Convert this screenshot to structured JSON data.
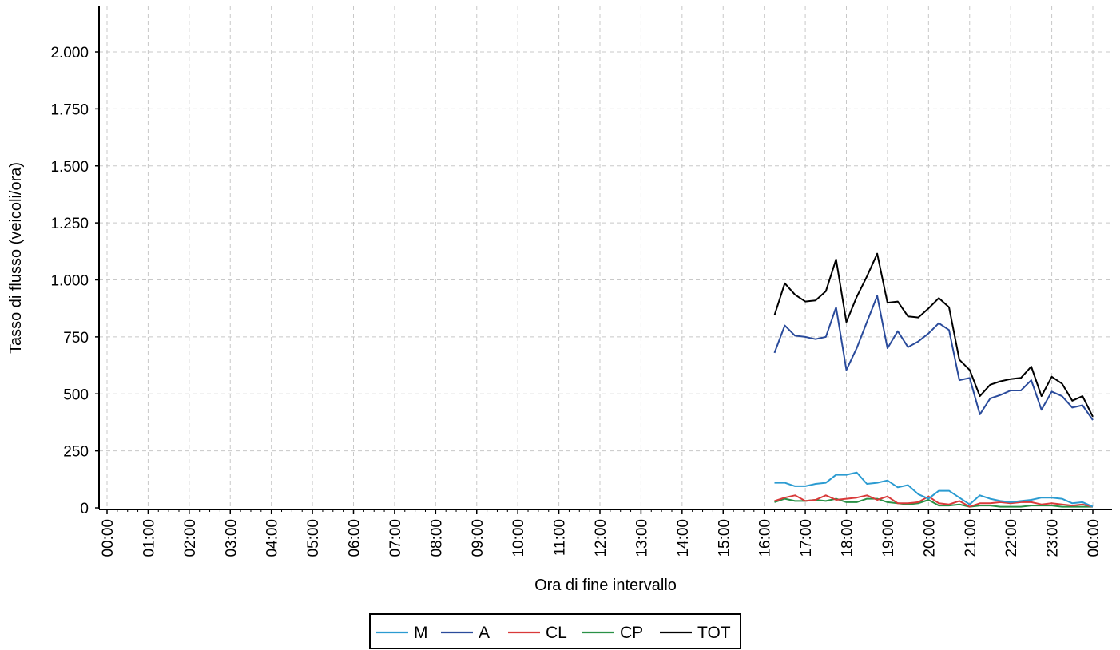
{
  "chart_data": {
    "type": "line",
    "title": "",
    "xlabel": "Ora di fine intervallo",
    "ylabel": "Tasso di flusso (veicoli/ora)",
    "x_tick_labels": [
      "00:00",
      "01:00",
      "02:00",
      "03:00",
      "04:00",
      "05:00",
      "06:00",
      "07:00",
      "08:00",
      "09:00",
      "10:00",
      "11:00",
      "12:00",
      "13:00",
      "14:00",
      "15:00",
      "16:00",
      "17:00",
      "18:00",
      "19:00",
      "20:00",
      "21:00",
      "22:00",
      "23:00",
      "00:00"
    ],
    "x_range_hours": [
      0,
      24
    ],
    "y_ticks": [
      0,
      250,
      500,
      750,
      1000,
      1250,
      1500,
      1750,
      2000
    ],
    "y_tick_labels": [
      "0",
      "250",
      "500",
      "750",
      "1.000",
      "1.250",
      "1.500",
      "1.750",
      "2.000"
    ],
    "ylim": [
      0,
      2150
    ],
    "grid": true,
    "legend_position": "bottom-center",
    "x_hours": [
      16.25,
      16.5,
      16.75,
      17,
      17.25,
      17.5,
      17.75,
      18,
      18.25,
      18.5,
      18.75,
      19,
      19.25,
      19.5,
      19.75,
      20,
      20.25,
      20.5,
      20.75,
      21,
      21.25,
      21.5,
      21.75,
      22,
      22.25,
      22.5,
      22.75,
      23,
      23.25,
      23.5,
      23.75,
      24
    ],
    "series": [
      {
        "name": "M",
        "color": "#2b9bd1",
        "values": [
          110,
          110,
          95,
          95,
          105,
          110,
          145,
          145,
          155,
          105,
          110,
          120,
          90,
          100,
          60,
          40,
          75,
          75,
          45,
          15,
          55,
          40,
          30,
          25,
          30,
          35,
          45,
          45,
          40,
          20,
          25,
          5
        ]
      },
      {
        "name": "A",
        "color": "#2a4b9b",
        "values": [
          680,
          800,
          755,
          750,
          740,
          750,
          880,
          605,
          700,
          815,
          930,
          700,
          775,
          705,
          730,
          765,
          810,
          780,
          560,
          570,
          410,
          480,
          495,
          515,
          515,
          560,
          430,
          510,
          490,
          440,
          450,
          385
        ]
      },
      {
        "name": "CL",
        "color": "#d93a3a",
        "values": [
          30,
          45,
          55,
          30,
          35,
          55,
          35,
          40,
          45,
          55,
          35,
          50,
          20,
          20,
          25,
          50,
          20,
          15,
          30,
          5,
          20,
          20,
          25,
          20,
          25,
          25,
          15,
          20,
          15,
          10,
          15,
          5
        ]
      },
      {
        "name": "CP",
        "color": "#2a9146",
        "values": [
          25,
          40,
          30,
          30,
          35,
          30,
          40,
          25,
          25,
          40,
          40,
          25,
          20,
          15,
          20,
          35,
          10,
          10,
          15,
          5,
          10,
          10,
          5,
          5,
          5,
          10,
          10,
          10,
          5,
          5,
          5,
          5
        ]
      },
      {
        "name": "TOT",
        "color": "#000000",
        "values": [
          845,
          985,
          935,
          905,
          910,
          950,
          1090,
          815,
          925,
          1015,
          1115,
          900,
          905,
          840,
          835,
          875,
          920,
          880,
          650,
          605,
          490,
          540,
          555,
          565,
          570,
          620,
          490,
          575,
          545,
          470,
          490,
          400
        ]
      }
    ]
  }
}
